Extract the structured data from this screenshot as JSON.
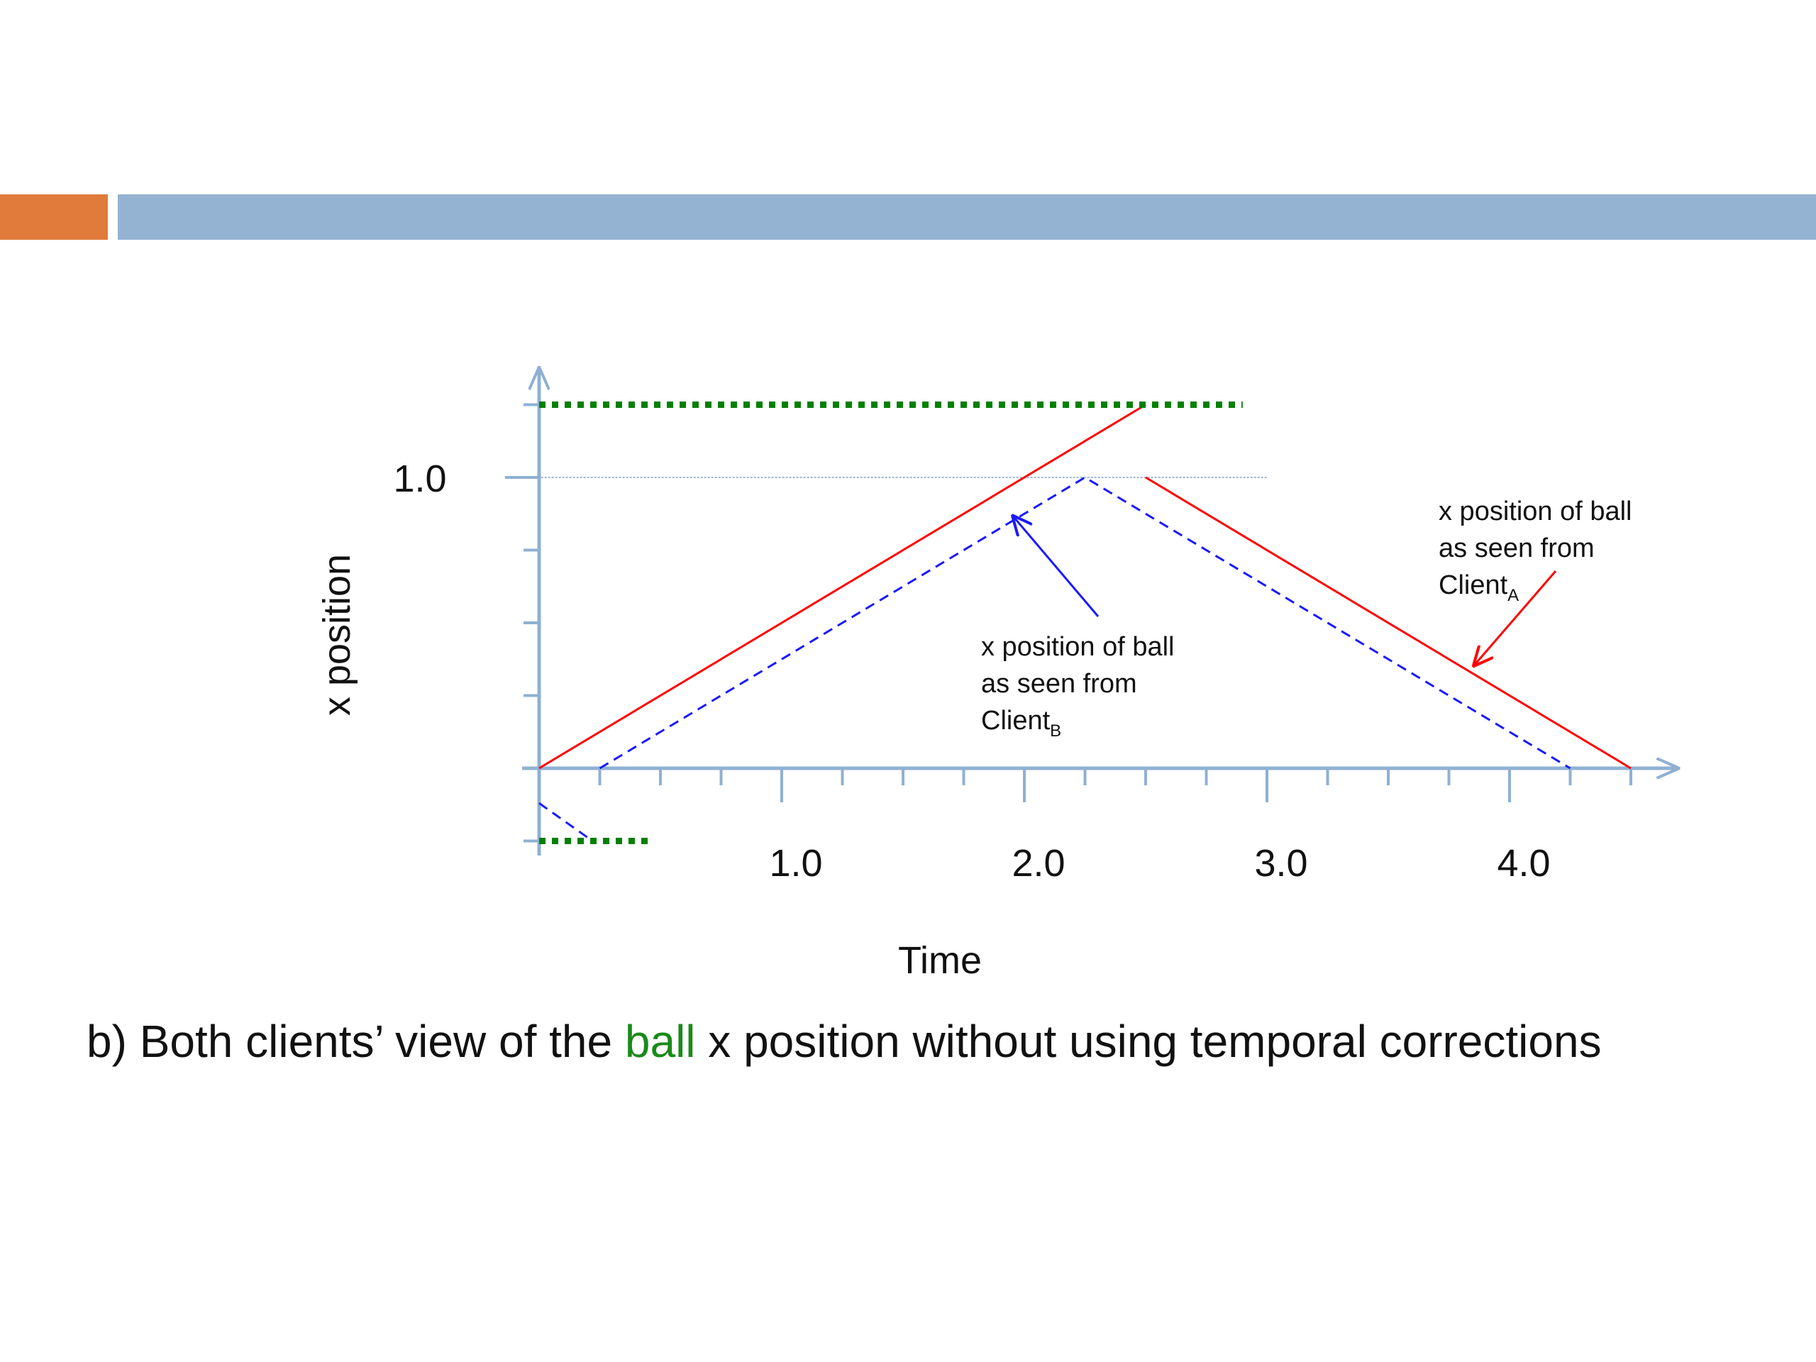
{
  "header": {
    "accent_left_color": "#e07b3c",
    "accent_bar_color": "#94b3d3"
  },
  "chart_data": {
    "type": "line",
    "xlabel": "Time",
    "ylabel": "x position",
    "x_tick_labels": [
      "1.0",
      "2.0",
      "3.0",
      "4.0"
    ],
    "x_tick_values": [
      1.0,
      2.0,
      3.0,
      4.0
    ],
    "y_tick_labels": [
      "1.0"
    ],
    "y_tick_values": [
      1.0
    ],
    "xlim": [
      -0.14,
      4.7
    ],
    "ylim": [
      -0.3,
      1.38
    ],
    "minor_x_ticks": 0.25,
    "minor_y_ticks": 0.25,
    "reference_line_y": 1.0,
    "colors": {
      "axis": "#8fb0d3",
      "client_a": "#ff0000",
      "client_b": "#1a1aff",
      "bounds": "#008000",
      "reference": "#9db8d8"
    },
    "series": [
      {
        "label": "Client_A",
        "style": "solid",
        "segments": [
          [
            [
              0.0,
              0.0
            ],
            [
              2.5,
              1.25
            ]
          ],
          [
            [
              2.5,
              1.0
            ],
            [
              4.5,
              0.0
            ]
          ]
        ]
      },
      {
        "label": "Client_B",
        "style": "dashed",
        "segments": [
          [
            [
              0.0,
              -0.12
            ],
            [
              0.22,
              -0.25
            ]
          ],
          [
            [
              0.25,
              0.0
            ],
            [
              2.25,
              1.0
            ],
            [
              4.25,
              0.0
            ]
          ]
        ]
      },
      {
        "label": "bounds",
        "style": "dotted",
        "segments": [
          [
            [
              0.0,
              1.25
            ],
            [
              2.9,
              1.25
            ]
          ],
          [
            [
              0.0,
              -0.25
            ],
            [
              0.47,
              -0.25
            ]
          ]
        ]
      }
    ],
    "annotations": {
      "client_a": {
        "lines": [
          "x position of ball",
          "as seen from"
        ],
        "base": "Client",
        "sub": "A",
        "target": [
          3.85,
          0.35
        ]
      },
      "client_b": {
        "lines": [
          "x position of ball",
          "as seen from"
        ],
        "base": "Client",
        "sub": "B",
        "target": [
          1.95,
          0.87
        ]
      }
    }
  },
  "caption": {
    "part1": "b) Both clients’ view of the ",
    "highlight": "ball",
    "part2": " x position without using temporal corrections",
    "highlight_color": "#1a8a1a"
  }
}
